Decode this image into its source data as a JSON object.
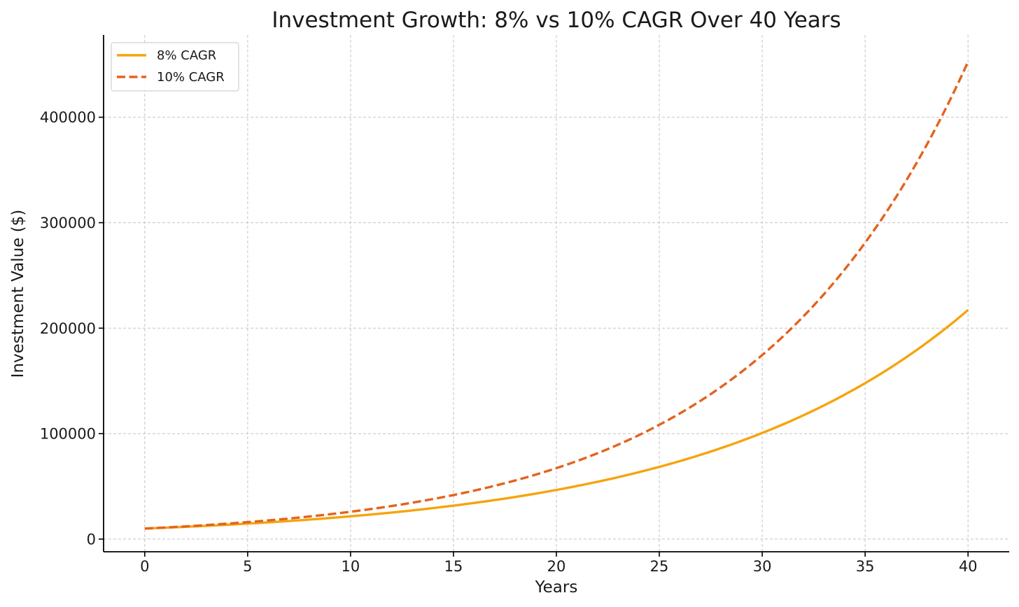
{
  "chart_data": {
    "type": "line",
    "title": "Investment Growth: 8% vs 10% CAGR Over 40 Years",
    "xlabel": "Years",
    "ylabel": "Investment Value ($)",
    "xlim": [
      -2,
      42
    ],
    "ylim": [
      -12000,
      478000
    ],
    "x_ticks": [
      0,
      5,
      10,
      15,
      20,
      25,
      30,
      35,
      40
    ],
    "x_tick_labels": [
      "0",
      "5",
      "10",
      "15",
      "20",
      "25",
      "30",
      "35",
      "40"
    ],
    "y_ticks": [
      0,
      100000,
      200000,
      300000,
      400000
    ],
    "y_tick_labels": [
      "0",
      "100000",
      "200000",
      "300000",
      "400000"
    ],
    "grid": true,
    "legend_position": "top-left",
    "x": [
      0,
      5,
      10,
      15,
      20,
      25,
      30,
      35,
      40
    ],
    "series": [
      {
        "name": "8% CAGR",
        "color": "#f5a40d",
        "line_style": "solid",
        "initial": 10000,
        "rate": 0.08,
        "values": [
          10000,
          14693,
          21589,
          31722,
          46610,
          68485,
          100627,
          147853,
          217245
        ]
      },
      {
        "name": "10% CAGR",
        "color": "#e4631d",
        "line_style": "dashed",
        "initial": 10000,
        "rate": 0.1,
        "values": [
          10000,
          16105,
          25937,
          41772,
          67275,
          108347,
          174494,
          281024,
          452593
        ]
      }
    ]
  }
}
